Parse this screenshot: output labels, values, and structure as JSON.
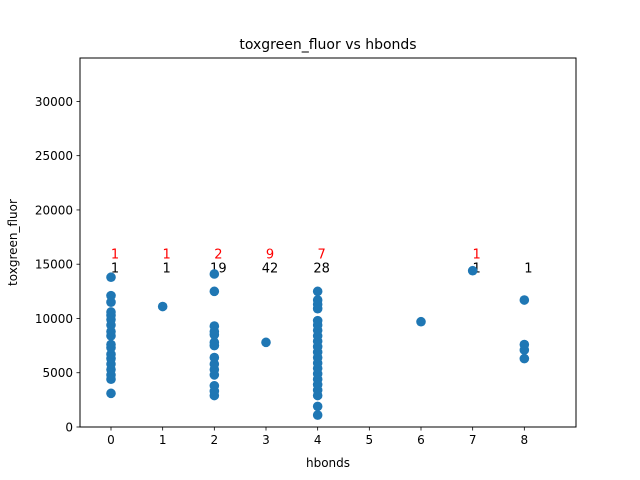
{
  "chart_data": {
    "type": "scatter",
    "title": "toxgreen_fluor vs hbonds",
    "xlabel": "hbonds",
    "ylabel": "toxgreen_fluor",
    "xlim": [
      -0.6,
      9.0
    ],
    "ylim": [
      0,
      34000
    ],
    "xticks": [
      "0",
      "1",
      "2",
      "3",
      "4",
      "5",
      "6",
      "7",
      "8"
    ],
    "yticks": [
      "0",
      "5000",
      "10000",
      "15000",
      "20000",
      "25000",
      "30000"
    ],
    "grid": false,
    "marker_color": "#1f77b4",
    "points": [
      {
        "x": 0,
        "y": 3100
      },
      {
        "x": 0,
        "y": 4400
      },
      {
        "x": 0,
        "y": 4800
      },
      {
        "x": 0,
        "y": 5300
      },
      {
        "x": 0,
        "y": 5800
      },
      {
        "x": 0,
        "y": 6300
      },
      {
        "x": 0,
        "y": 6700
      },
      {
        "x": 0,
        "y": 7300
      },
      {
        "x": 0,
        "y": 7600
      },
      {
        "x": 0,
        "y": 8400
      },
      {
        "x": 0,
        "y": 8800
      },
      {
        "x": 0,
        "y": 9400
      },
      {
        "x": 0,
        "y": 9900
      },
      {
        "x": 0,
        "y": 10300
      },
      {
        "x": 0,
        "y": 10600
      },
      {
        "x": 0,
        "y": 11500
      },
      {
        "x": 0,
        "y": 12100
      },
      {
        "x": 0,
        "y": 13800
      },
      {
        "x": 1,
        "y": 11100
      },
      {
        "x": 2,
        "y": 2900
      },
      {
        "x": 2,
        "y": 3300
      },
      {
        "x": 2,
        "y": 3800
      },
      {
        "x": 2,
        "y": 4800
      },
      {
        "x": 2,
        "y": 5300
      },
      {
        "x": 2,
        "y": 5800
      },
      {
        "x": 2,
        "y": 6400
      },
      {
        "x": 2,
        "y": 7500
      },
      {
        "x": 2,
        "y": 7800
      },
      {
        "x": 2,
        "y": 8500
      },
      {
        "x": 2,
        "y": 8800
      },
      {
        "x": 2,
        "y": 9300
      },
      {
        "x": 2,
        "y": 12500
      },
      {
        "x": 2,
        "y": 14100
      },
      {
        "x": 3,
        "y": 7800
      },
      {
        "x": 4,
        "y": 1100
      },
      {
        "x": 4,
        "y": 1900
      },
      {
        "x": 4,
        "y": 2900
      },
      {
        "x": 4,
        "y": 3400
      },
      {
        "x": 4,
        "y": 3900
      },
      {
        "x": 4,
        "y": 4400
      },
      {
        "x": 4,
        "y": 4900
      },
      {
        "x": 4,
        "y": 5400
      },
      {
        "x": 4,
        "y": 5900
      },
      {
        "x": 4,
        "y": 6400
      },
      {
        "x": 4,
        "y": 6900
      },
      {
        "x": 4,
        "y": 7400
      },
      {
        "x": 4,
        "y": 7900
      },
      {
        "x": 4,
        "y": 8400
      },
      {
        "x": 4,
        "y": 8900
      },
      {
        "x": 4,
        "y": 9400
      },
      {
        "x": 4,
        "y": 9800
      },
      {
        "x": 4,
        "y": 10900
      },
      {
        "x": 4,
        "y": 11300
      },
      {
        "x": 4,
        "y": 11700
      },
      {
        "x": 4,
        "y": 12500
      },
      {
        "x": 6,
        "y": 9700
      },
      {
        "x": 7,
        "y": 14400
      },
      {
        "x": 8,
        "y": 6300
      },
      {
        "x": 8,
        "y": 7100
      },
      {
        "x": 8,
        "y": 7600
      },
      {
        "x": 8,
        "y": 11700
      }
    ],
    "annotations_red": [
      {
        "x": 0,
        "y": 16000,
        "text": "1"
      },
      {
        "x": 1,
        "y": 16000,
        "text": "1"
      },
      {
        "x": 2,
        "y": 16000,
        "text": "2"
      },
      {
        "x": 3,
        "y": 16000,
        "text": "9"
      },
      {
        "x": 4,
        "y": 16000,
        "text": "7"
      },
      {
        "x": 7,
        "y": 16000,
        "text": "1"
      }
    ],
    "annotations_black": [
      {
        "x": 0,
        "y": 14700,
        "text": "1"
      },
      {
        "x": 1,
        "y": 14700,
        "text": "1"
      },
      {
        "x": 2,
        "y": 14700,
        "text": "19"
      },
      {
        "x": 3,
        "y": 14700,
        "text": "42"
      },
      {
        "x": 4,
        "y": 14700,
        "text": "28"
      },
      {
        "x": 7,
        "y": 14700,
        "text": "1"
      },
      {
        "x": 8,
        "y": 14700,
        "text": "1"
      }
    ],
    "annotation_colors": {
      "red": "#ff0000",
      "black": "#000000"
    }
  }
}
